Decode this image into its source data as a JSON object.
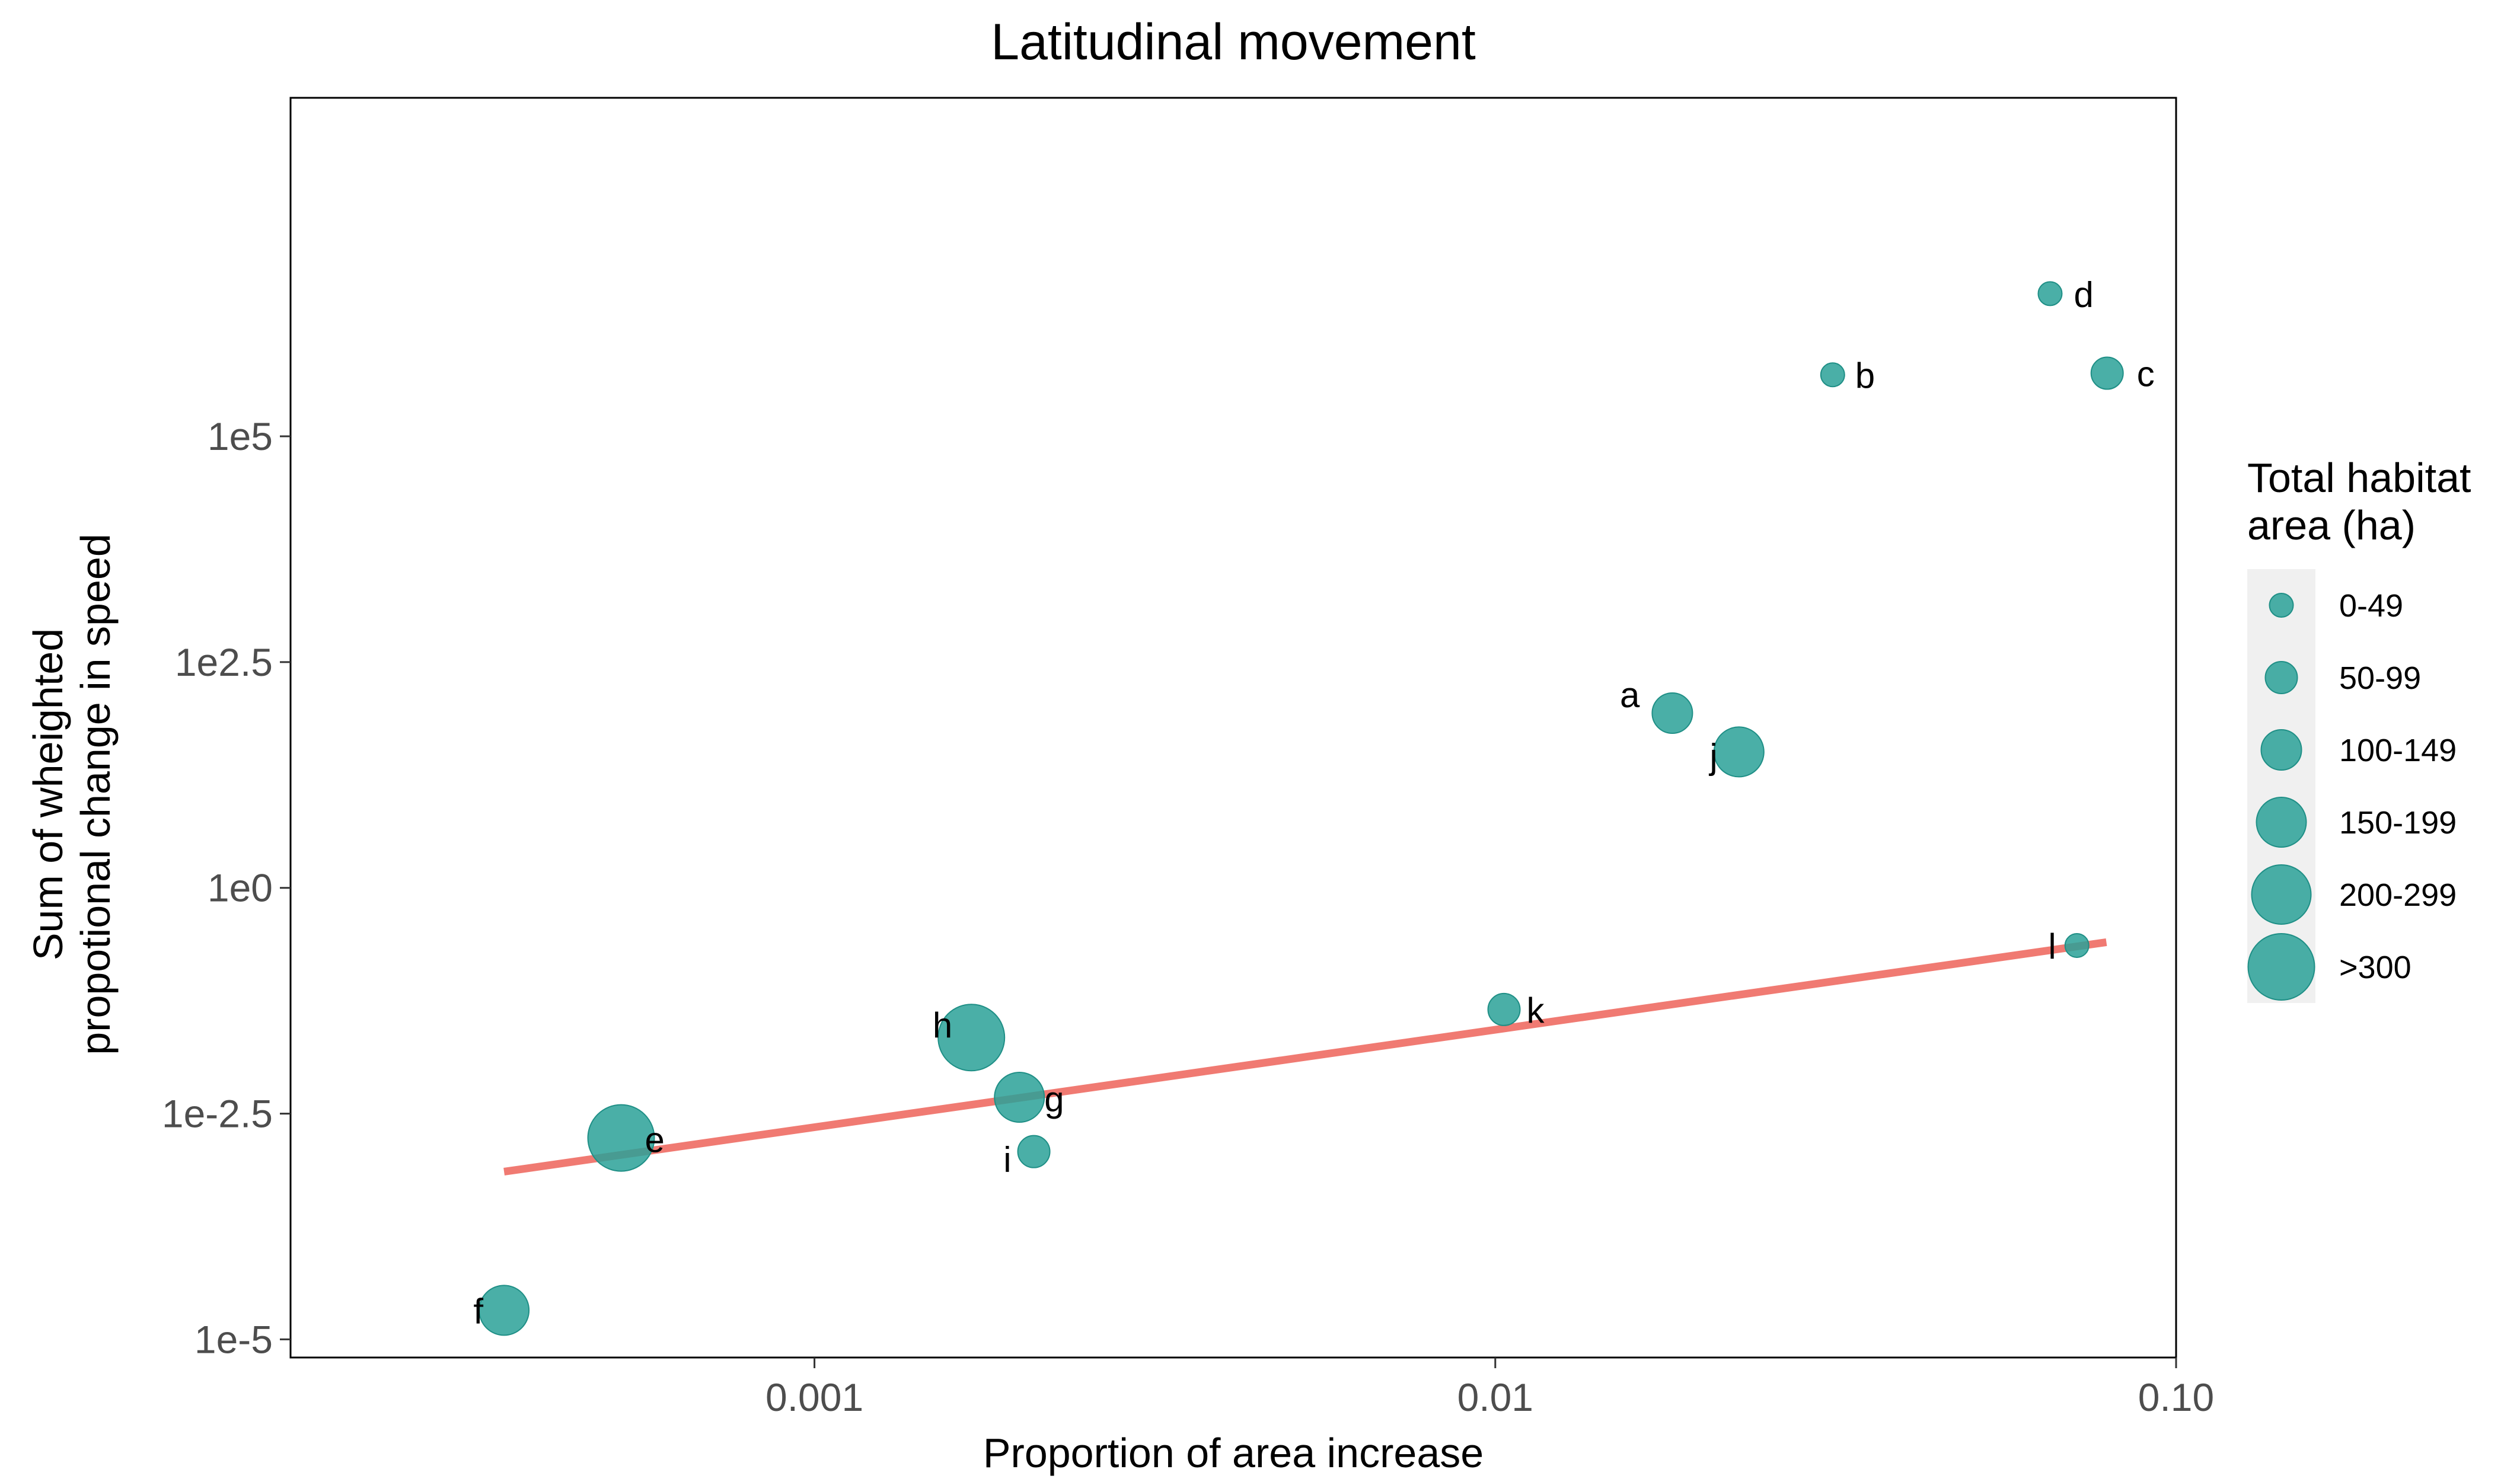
{
  "chart_data": {
    "type": "scatter",
    "title": "Latitudinal movement",
    "xlabel": "Proportion of area increase",
    "ylabel": [
      "Sum of wheighted",
      "propotional change in speed"
    ],
    "x_scale": "log10",
    "y_scale": "log10",
    "xlim": [
      0.00017,
      0.1
    ],
    "ylim": [
      6.3e-06,
      560000000
    ],
    "x_ticks": [
      {
        "value": 0.001,
        "label": "0.001"
      },
      {
        "value": 0.01,
        "label": "0.01"
      },
      {
        "value": 0.1,
        "label": "0.10"
      }
    ],
    "y_ticks": [
      {
        "value": 1e-05,
        "label": "1e-5"
      },
      {
        "value": 0.00316,
        "label": "1e-2.5"
      },
      {
        "value": 1,
        "label": "1e0"
      },
      {
        "value": 316,
        "label": "1e2.5"
      },
      {
        "value": 100000,
        "label": "1e5"
      }
    ],
    "grid": false,
    "point_color": "#2aa198",
    "points": [
      {
        "label": "a",
        "x": 0.0182,
        "y": 86,
        "size_class": "100-149"
      },
      {
        "label": "b",
        "x": 0.0313,
        "y": 480000,
        "size_class": "0-49"
      },
      {
        "label": "c",
        "x": 0.0792,
        "y": 500000,
        "size_class": "50-99"
      },
      {
        "label": "d",
        "x": 0.0653,
        "y": 3800000,
        "size_class": "0-49"
      },
      {
        "label": "e",
        "x": 0.00052,
        "y": 0.0017,
        "size_class": ">300"
      },
      {
        "label": "f",
        "x": 0.00035,
        "y": 2.1e-05,
        "size_class": "150-199"
      },
      {
        "label": "g",
        "x": 0.002,
        "y": 0.0048,
        "size_class": "150-199"
      },
      {
        "label": "h",
        "x": 0.0017,
        "y": 0.022,
        "size_class": ">300"
      },
      {
        "label": "i",
        "x": 0.0021,
        "y": 0.0012,
        "size_class": "50-99"
      },
      {
        "label": "j",
        "x": 0.0228,
        "y": 32,
        "size_class": "150-199"
      },
      {
        "label": "k",
        "x": 0.0103,
        "y": 0.045,
        "size_class": "50-99"
      },
      {
        "label": "l",
        "x": 0.0715,
        "y": 0.23,
        "size_class": "0-49"
      }
    ],
    "trend_line": {
      "color": "#f07a72",
      "points": [
        {
          "x": 0.00035,
          "y": 0.00072
        },
        {
          "x": 0.079,
          "y": 0.25
        }
      ]
    },
    "legend": {
      "title": [
        "Total habitat",
        "area (ha)"
      ],
      "position": "right",
      "entries": [
        {
          "label": "0-49"
        },
        {
          "label": "50-99"
        },
        {
          "label": "100-149"
        },
        {
          "label": "150-199"
        },
        {
          "label": "200-299"
        },
        {
          "label": ">300"
        }
      ]
    }
  }
}
